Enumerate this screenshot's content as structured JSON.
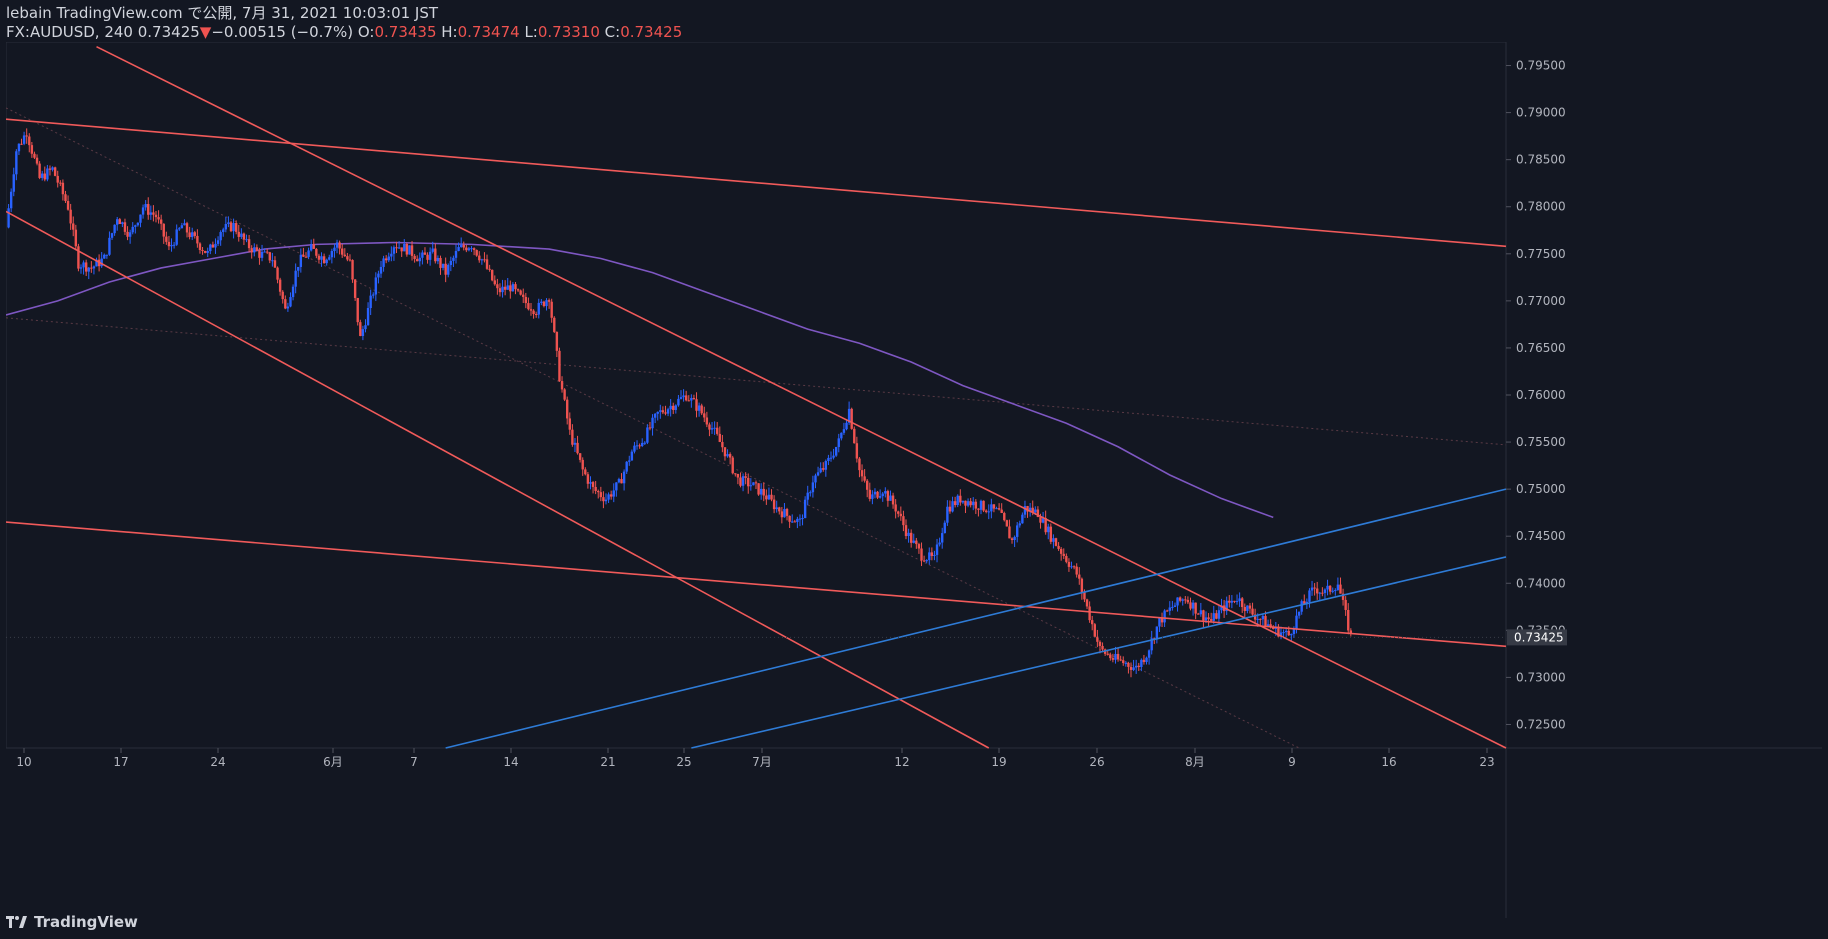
{
  "header": {
    "line1": "lebain TradingView.com で公開, 7月 31, 2021 10:03:01 JST",
    "symbol": "FX:AUDUSD, 240",
    "last": "0.73425",
    "change_arrow": "▼",
    "change": "−0.00515 (−0.7%)",
    "o_label": "O:",
    "o_val": "0.73435",
    "h_label": "H:",
    "h_val": "0.73474",
    "l_label": "L:",
    "l_val": "0.73310",
    "c_label": "C:",
    "c_val": "0.73425"
  },
  "footer": {
    "brand": "TradingView"
  },
  "colors": {
    "background": "#131722",
    "up": "#2962ff",
    "down": "#ef5350",
    "trendline_red": "#f05a5a",
    "trendline_blue": "#2e7bd6",
    "moving_average": "#7e57c2",
    "axis_text": "#b2b5be"
  },
  "chart_data": {
    "type": "candlestick",
    "ylim": [
      0.7225,
      0.7975
    ],
    "y_ticks": [
      "0.72500",
      "0.73000",
      "0.73500",
      "0.74000",
      "0.74500",
      "0.75000",
      "0.75500",
      "0.76000",
      "0.76500",
      "0.77000",
      "0.77500",
      "0.78000",
      "0.78500",
      "0.79000",
      "0.79500"
    ],
    "x_ticks": [
      "10",
      "17",
      "24",
      "6月",
      "7",
      "14",
      "21",
      "25",
      "7月",
      "12",
      "19",
      "26",
      "8月",
      "9",
      "16",
      "23"
    ],
    "last_price_label": "0.73425",
    "close_path": [
      [
        0,
        0.7778
      ],
      [
        4,
        0.786
      ],
      [
        8,
        0.788
      ],
      [
        13,
        0.783
      ],
      [
        18,
        0.784
      ],
      [
        24,
        0.78
      ],
      [
        28,
        0.774
      ],
      [
        33,
        0.7735
      ],
      [
        38,
        0.7745
      ],
      [
        43,
        0.779
      ],
      [
        48,
        0.777
      ],
      [
        53,
        0.78
      ],
      [
        58,
        0.779
      ],
      [
        63,
        0.7755
      ],
      [
        68,
        0.778
      ],
      [
        73,
        0.7765
      ],
      [
        78,
        0.775
      ],
      [
        83,
        0.7775
      ],
      [
        88,
        0.778
      ],
      [
        93,
        0.776
      ],
      [
        98,
        0.775
      ],
      [
        103,
        0.7745
      ],
      [
        108,
        0.769
      ],
      [
        113,
        0.774
      ],
      [
        118,
        0.7755
      ],
      [
        123,
        0.7745
      ],
      [
        128,
        0.776
      ],
      [
        133,
        0.774
      ],
      [
        137,
        0.766
      ],
      [
        141,
        0.77
      ],
      [
        145,
        0.774
      ],
      [
        150,
        0.776
      ],
      [
        155,
        0.7755
      ],
      [
        160,
        0.7745
      ],
      [
        165,
        0.775
      ],
      [
        170,
        0.773
      ],
      [
        175,
        0.7755
      ],
      [
        180,
        0.776
      ],
      [
        185,
        0.774
      ],
      [
        190,
        0.771
      ],
      [
        195,
        0.7715
      ],
      [
        200,
        0.77
      ],
      [
        205,
        0.769
      ],
      [
        210,
        0.7705
      ],
      [
        214,
        0.762
      ],
      [
        218,
        0.756
      ],
      [
        223,
        0.752
      ],
      [
        227,
        0.75
      ],
      [
        232,
        0.749
      ],
      [
        237,
        0.7505
      ],
      [
        242,
        0.754
      ],
      [
        247,
        0.7555
      ],
      [
        252,
        0.758
      ],
      [
        258,
        0.759
      ],
      [
        263,
        0.76
      ],
      [
        268,
        0.7585
      ],
      [
        273,
        0.7565
      ],
      [
        278,
        0.754
      ],
      [
        283,
        0.751
      ],
      [
        288,
        0.7505
      ],
      [
        293,
        0.7495
      ],
      [
        298,
        0.748
      ],
      [
        303,
        0.747
      ],
      [
        307,
        0.7465
      ],
      [
        312,
        0.751
      ],
      [
        317,
        0.7525
      ],
      [
        322,
        0.755
      ],
      [
        326,
        0.7585
      ],
      [
        330,
        0.752
      ],
      [
        334,
        0.749
      ],
      [
        339,
        0.75
      ],
      [
        344,
        0.748
      ],
      [
        349,
        0.745
      ],
      [
        354,
        0.743
      ],
      [
        359,
        0.7425
      ],
      [
        364,
        0.748
      ],
      [
        369,
        0.749
      ],
      [
        374,
        0.7485
      ],
      [
        379,
        0.748
      ],
      [
        384,
        0.7475
      ],
      [
        389,
        0.7445
      ],
      [
        394,
        0.748
      ],
      [
        399,
        0.7475
      ],
      [
        404,
        0.745
      ],
      [
        409,
        0.743
      ],
      [
        414,
        0.741
      ],
      [
        419,
        0.7365
      ],
      [
        423,
        0.733
      ],
      [
        428,
        0.732
      ],
      [
        433,
        0.7315
      ],
      [
        437,
        0.731
      ],
      [
        441,
        0.7325
      ],
      [
        446,
        0.736
      ],
      [
        451,
        0.7375
      ],
      [
        456,
        0.7385
      ],
      [
        461,
        0.737
      ],
      [
        466,
        0.736
      ],
      [
        471,
        0.7375
      ],
      [
        476,
        0.7385
      ],
      [
        481,
        0.737
      ],
      [
        486,
        0.736
      ],
      [
        491,
        0.735
      ],
      [
        496,
        0.7345
      ],
      [
        501,
        0.7375
      ],
      [
        506,
        0.7395
      ],
      [
        510,
        0.739
      ],
      [
        515,
        0.74
      ],
      [
        520,
        0.7343
      ]
    ],
    "ma_path": [
      [
        0,
        0.7685
      ],
      [
        20,
        0.77
      ],
      [
        40,
        0.772
      ],
      [
        60,
        0.7735
      ],
      [
        80,
        0.7745
      ],
      [
        100,
        0.7755
      ],
      [
        120,
        0.776
      ],
      [
        150,
        0.7762
      ],
      [
        180,
        0.776
      ],
      [
        210,
        0.7755
      ],
      [
        230,
        0.7745
      ],
      [
        250,
        0.773
      ],
      [
        270,
        0.771
      ],
      [
        290,
        0.769
      ],
      [
        310,
        0.767
      ],
      [
        330,
        0.7655
      ],
      [
        350,
        0.7635
      ],
      [
        370,
        0.761
      ],
      [
        390,
        0.759
      ],
      [
        410,
        0.757
      ],
      [
        430,
        0.7545
      ],
      [
        450,
        0.7515
      ],
      [
        470,
        0.749
      ],
      [
        480,
        0.748
      ],
      [
        490,
        0.747
      ]
    ],
    "trendlines": [
      {
        "color": "red",
        "from": [
          0,
          0.7893
        ],
        "to": [
          580,
          0.7758
        ]
      },
      {
        "color": "red",
        "from": [
          35,
          0.797
        ],
        "to": [
          580,
          0.7225
        ]
      },
      {
        "color": "red",
        "from": [
          0,
          0.7795
        ],
        "to": [
          380,
          0.7225
        ]
      },
      {
        "color": "red",
        "from": [
          0,
          0.7465
        ],
        "to": [
          580,
          0.7333
        ]
      },
      {
        "color": "blue",
        "from": [
          170,
          0.7225
        ],
        "to": [
          580,
          0.75
        ]
      },
      {
        "color": "blue",
        "from": [
          265,
          0.7225
        ],
        "to": [
          580,
          0.7428
        ]
      }
    ],
    "dotted_lines": [
      {
        "from": [
          0,
          0.7682
        ],
        "to": [
          580,
          0.7547
        ]
      },
      {
        "from": [
          0,
          0.7905
        ],
        "to": [
          500,
          0.7225
        ]
      }
    ]
  }
}
